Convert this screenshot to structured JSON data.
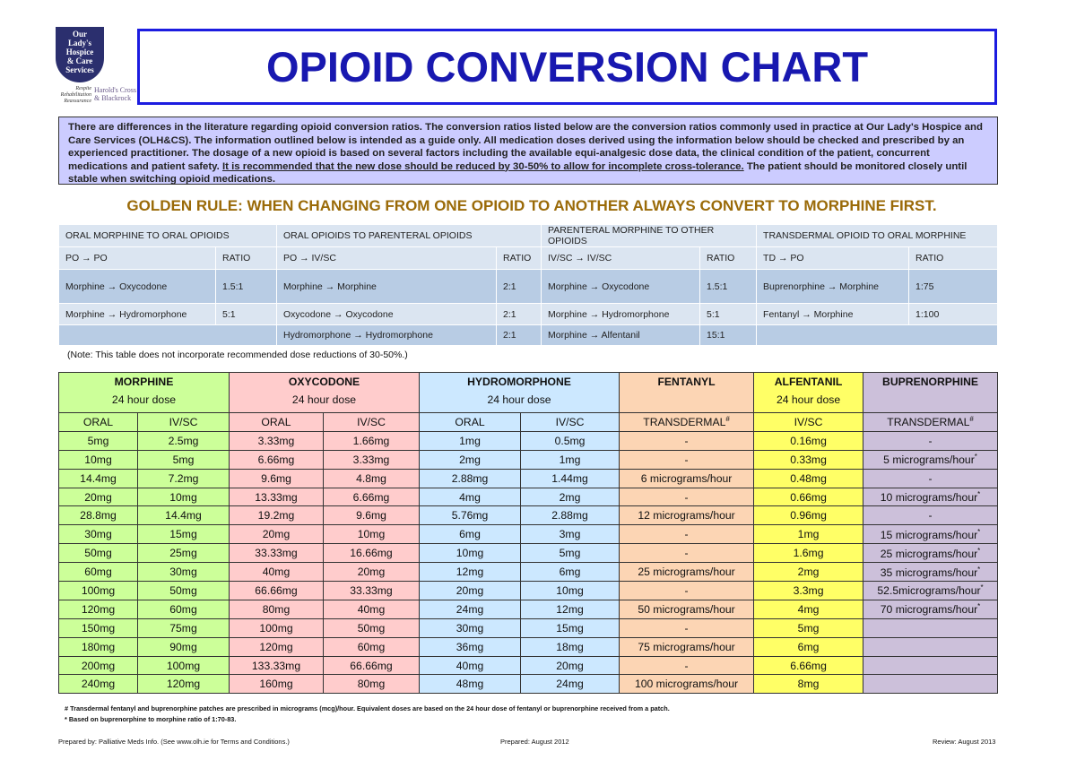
{
  "logo": {
    "name_lines": [
      "Our",
      "Lady's",
      "Hospice",
      "& Care",
      "Services"
    ],
    "tagline": [
      "Respite",
      "Rehabilitation",
      "Reassurance"
    ],
    "locations": [
      "Harold's Cross",
      "& Blackrock"
    ]
  },
  "header": {
    "title": "OPIOID CONVERSION CHART"
  },
  "intro": {
    "text_before": "There are differences in the literature regarding opioid conversion ratios. The conversion ratios listed below are the conversion ratios commonly used in practice at Our Lady's Hospice and Care Services (OLH&CS). The information outlined below is intended as a guide only. All medication doses derived using the information below should be checked and prescribed by an experienced practitioner. The dosage of a new opioid is based on several factors including the available equi-analgesic dose data, the clinical condition of the patient, concurrent medications and patient safety.",
    "underlined": "It is recommended that the new dose should be reduced by 30-50% to allow for incomplete cross-tolerance.",
    "text_after": "The patient should be monitored closely until stable when switching opioid medications."
  },
  "golden_rule": "GOLDEN RULE: WHEN CHANGING FROM ONE OPIOID TO ANOTHER ALWAYS CONVERT TO MORPHINE FIRST.",
  "ratio_table": {
    "groups": [
      {
        "title": "ORAL MORPHINE TO ORAL OPIOIDS",
        "columns": [
          "PO → PO",
          "RATIO"
        ],
        "rows": [
          [
            "Morphine → Oxycodone",
            "1.5:1"
          ],
          [
            "Morphine → Hydromorphone",
            "5:1"
          ],
          null
        ]
      },
      {
        "title": "ORAL OPIOIDS TO PARENTERAL OPIOIDS",
        "columns": [
          "PO → IV/SC",
          "RATIO"
        ],
        "rows": [
          [
            "Morphine → Morphine",
            "2:1"
          ],
          [
            "Oxycodone → Oxycodone",
            "2:1"
          ],
          [
            "Hydromorphone → Hydromorphone",
            "2:1"
          ]
        ]
      },
      {
        "title": "PARENTERAL MORPHINE TO OTHER OPIOIDS",
        "columns": [
          "IV/SC → IV/SC",
          "RATIO"
        ],
        "rows": [
          [
            "Morphine → Oxycodone",
            "1.5:1"
          ],
          [
            "Morphine → Hydromorphone",
            "5:1"
          ],
          [
            "Morphine →  Alfentanil",
            "15:1"
          ]
        ]
      },
      {
        "title": "TRANSDERMAL OPIOID TO ORAL MORPHINE",
        "columns": [
          "TD → PO",
          "RATIO"
        ],
        "rows": [
          [
            "Buprenorphine → Morphine",
            "1:75"
          ],
          [
            "Fentanyl →  Morphine",
            "1:100"
          ],
          null
        ]
      }
    ]
  },
  "ratio_note": "(Note: This table does not incorporate recommended dose reductions of 30-50%.)",
  "dose_table": {
    "drugs": [
      {
        "name": "MORPHINE",
        "subtitle": "24 hour dose",
        "color": "#ccff99",
        "columns": [
          "ORAL",
          "IV/SC"
        ]
      },
      {
        "name": "OXYCODONE",
        "subtitle": "24 hour dose",
        "color": "#ffcccc",
        "columns": [
          "ORAL",
          "IV/SC"
        ]
      },
      {
        "name": "HYDROMORPHONE",
        "subtitle": "24 hour dose",
        "color": "#cce8ff",
        "columns": [
          "ORAL",
          "IV/SC"
        ]
      },
      {
        "name": "FENTANYL",
        "color": "#fcd5b4",
        "columns": [
          {
            "text": "TRANSDERMAL",
            "sup": "#"
          }
        ]
      },
      {
        "name": "ALFENTANIL",
        "subtitle": "24 hour dose",
        "color": "#ffff66",
        "columns": [
          "IV/SC"
        ]
      },
      {
        "name": "BUPRENORPHINE",
        "color": "#ccc0da",
        "columns": [
          {
            "text": "TRANSDERMAL",
            "sup": "#"
          }
        ]
      }
    ],
    "rows": [
      [
        "5mg",
        "2.5mg",
        "3.33mg",
        "1.66mg",
        "1mg",
        "0.5mg",
        "-",
        "0.16mg",
        "-"
      ],
      [
        "10mg",
        "5mg",
        "6.66mg",
        "3.33mg",
        "2mg",
        "1mg",
        "-",
        "0.33mg",
        {
          "text": "5 micrograms/hour",
          "sup": "*"
        }
      ],
      [
        "14.4mg",
        "7.2mg",
        "9.6mg",
        "4.8mg",
        "2.88mg",
        "1.44mg",
        "6 micrograms/hour",
        "0.48mg",
        "-"
      ],
      [
        "20mg",
        "10mg",
        "13.33mg",
        "6.66mg",
        "4mg",
        "2mg",
        "-",
        "0.66mg",
        {
          "text": "10 micrograms/hour",
          "sup": "*"
        }
      ],
      [
        "28.8mg",
        "14.4mg",
        "19.2mg",
        "9.6mg",
        "5.76mg",
        "2.88mg",
        "12 micrograms/hour",
        "0.96mg",
        "-"
      ],
      [
        "30mg",
        "15mg",
        "20mg",
        "10mg",
        "6mg",
        "3mg",
        "-",
        "1mg",
        {
          "text": "15 micrograms/hour",
          "sup": "*"
        }
      ],
      [
        "50mg",
        "25mg",
        "33.33mg",
        "16.66mg",
        "10mg",
        "5mg",
        "-",
        "1.6mg",
        {
          "text": "25 micrograms/hour",
          "sup": "*"
        }
      ],
      [
        "60mg",
        "30mg",
        "40mg",
        "20mg",
        "12mg",
        "6mg",
        "25 micrograms/hour",
        "2mg",
        {
          "text": "35 micrograms/hour",
          "sup": "*"
        }
      ],
      [
        "100mg",
        "50mg",
        "66.66mg",
        "33.33mg",
        "20mg",
        "10mg",
        "-",
        "3.3mg",
        {
          "text": "52.5micrograms/hour",
          "sup": "*"
        }
      ],
      [
        "120mg",
        "60mg",
        "80mg",
        "40mg",
        "24mg",
        "12mg",
        "50 micrograms/hour",
        "4mg",
        {
          "text": "70 micrograms/hour",
          "sup": "*"
        }
      ],
      [
        "150mg",
        "75mg",
        "100mg",
        "50mg",
        "30mg",
        "15mg",
        "-",
        "5mg",
        null
      ],
      [
        "180mg",
        "90mg",
        "120mg",
        "60mg",
        "36mg",
        "18mg",
        "75 micrograms/hour",
        "6mg",
        null
      ],
      [
        "200mg",
        "100mg",
        "133.33mg",
        "66.66mg",
        "40mg",
        "20mg",
        "-",
        "6.66mg",
        null
      ],
      [
        "240mg",
        "120mg",
        "160mg",
        "80mg",
        "48mg",
        "24mg",
        "100 micrograms/hour",
        "8mg",
        null
      ]
    ]
  },
  "footnotes": [
    "# Transdermal fentanyl and buprenorphine patches are prescribed in micrograms (mcg)/hour. Equivalent doses are based on the 24 hour dose of fentanyl or buprenorphine received from a patch.",
    "* Based on buprenorphine to morphine ratio of 1:70-83."
  ],
  "footer": {
    "prepared_by": "Prepared by: Palliative Meds Info. (See www.olh.ie for Terms and Conditions.)",
    "prepared": "Prepared: August 2012",
    "review": "Review: August 2013"
  }
}
